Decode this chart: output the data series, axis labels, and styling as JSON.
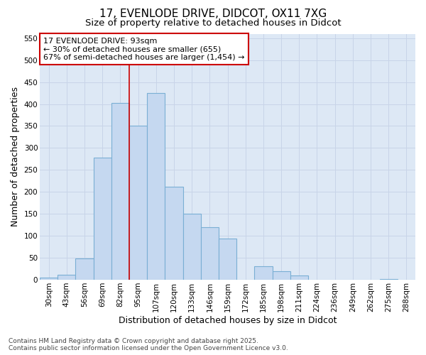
{
  "title_line1": "17, EVENLODE DRIVE, DIDCOT, OX11 7XG",
  "title_line2": "Size of property relative to detached houses in Didcot",
  "xlabel": "Distribution of detached houses by size in Didcot",
  "ylabel": "Number of detached properties",
  "categories": [
    "30sqm",
    "43sqm",
    "56sqm",
    "69sqm",
    "82sqm",
    "95sqm",
    "107sqm",
    "120sqm",
    "133sqm",
    "146sqm",
    "159sqm",
    "172sqm",
    "185sqm",
    "198sqm",
    "211sqm",
    "224sqm",
    "236sqm",
    "249sqm",
    "262sqm",
    "275sqm",
    "288sqm"
  ],
  "values": [
    5,
    12,
    48,
    278,
    403,
    350,
    425,
    212,
    150,
    120,
    93,
    0,
    30,
    20,
    10,
    0,
    0,
    0,
    0,
    2,
    0
  ],
  "bar_color": "#c5d8f0",
  "bar_edge_color": "#7aafd4",
  "vline_x": 4.5,
  "vline_color": "#cc0000",
  "annotation_line1": "17 EVENLODE DRIVE: 93sqm",
  "annotation_line2": "← 30% of detached houses are smaller (655)",
  "annotation_line3": "67% of semi-detached houses are larger (1,454) →",
  "annotation_box_edgecolor": "#cc0000",
  "annotation_fill": "#ffffff",
  "ylim": [
    0,
    560
  ],
  "yticks": [
    0,
    50,
    100,
    150,
    200,
    250,
    300,
    350,
    400,
    450,
    500,
    550
  ],
  "grid_color": "#c8d4e8",
  "bg_color": "#dde8f5",
  "fig_color": "#ffffff",
  "footer": "Contains HM Land Registry data © Crown copyright and database right 2025.\nContains public sector information licensed under the Open Government Licence v3.0.",
  "title_fontsize": 11,
  "subtitle_fontsize": 9.5,
  "axis_label_fontsize": 9,
  "tick_fontsize": 7.5,
  "annotation_fontsize": 8,
  "footer_fontsize": 6.5
}
